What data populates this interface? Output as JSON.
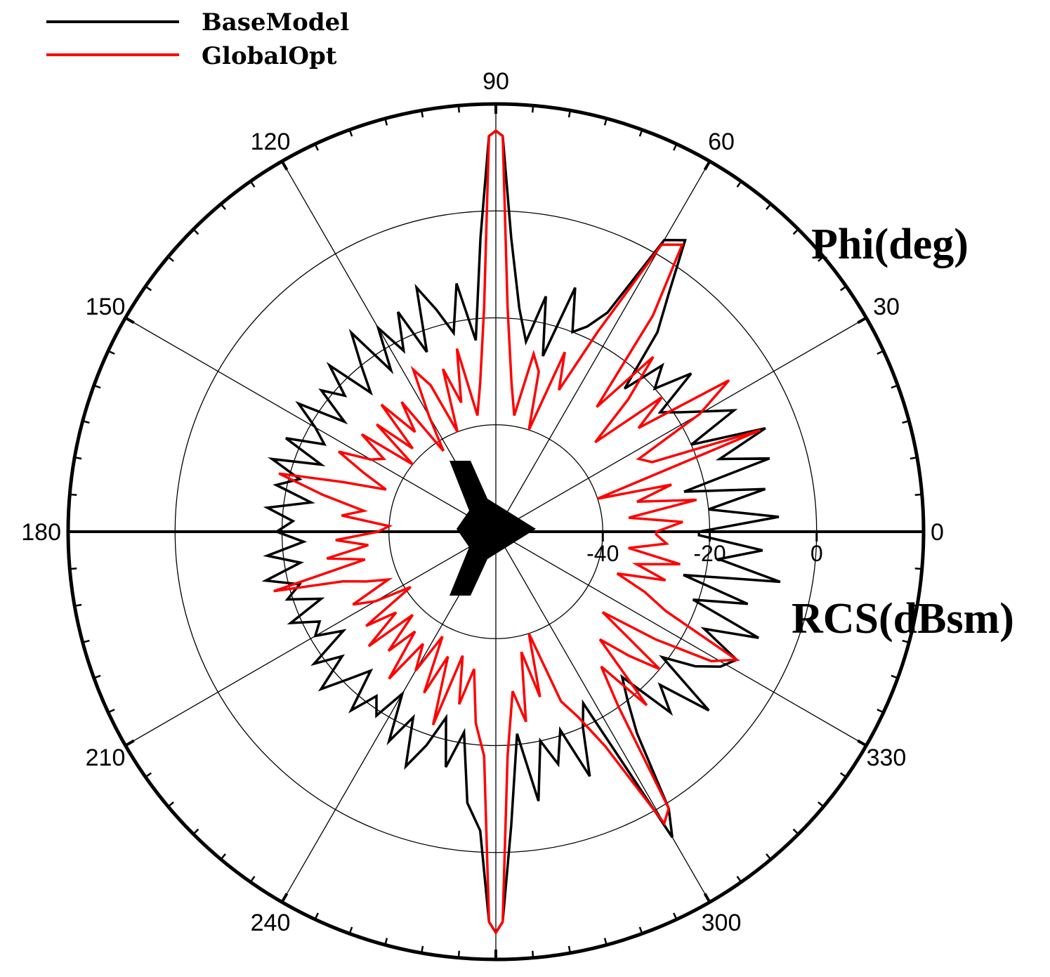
{
  "chart_data": {
    "type": "polar-line",
    "angle_title": "Phi(deg)",
    "radial_title": "RCS(dBsm)",
    "angle_ticks": [
      "0",
      "30",
      "60",
      "90",
      "120",
      "150",
      "180",
      "210",
      "240",
      "300",
      "330"
    ],
    "radial_ticks": [
      "-40",
      "-20",
      "0"
    ],
    "radial_range": [
      -60,
      20
    ],
    "ring_values": [
      -60,
      -40,
      -20,
      0,
      20
    ],
    "legend_position": "top-left",
    "grid": true,
    "series": [
      {
        "name": "BaseModel",
        "color": "#000000",
        "points": [
          [
            0,
            -22
          ],
          [
            3,
            -7
          ],
          [
            6,
            -20
          ],
          [
            9,
            -9
          ],
          [
            12,
            -24
          ],
          [
            15,
            -7
          ],
          [
            18,
            -16
          ],
          [
            21,
            -6
          ],
          [
            24,
            -20
          ],
          [
            27,
            -10
          ],
          [
            30,
            -15
          ],
          [
            33,
            -19
          ],
          [
            36,
            -22
          ],
          [
            39,
            -13
          ],
          [
            42,
            -20
          ],
          [
            45,
            -16
          ],
          [
            48,
            -24
          ],
          [
            51,
            -12
          ],
          [
            54,
            -5
          ],
          [
            57,
            5
          ],
          [
            60,
            3
          ],
          [
            63,
            -14
          ],
          [
            66,
            -18
          ],
          [
            69,
            -20
          ],
          [
            72,
            -12
          ],
          [
            75,
            -26
          ],
          [
            78,
            -15
          ],
          [
            81,
            -24
          ],
          [
            84,
            -18
          ],
          [
            87,
            -5
          ],
          [
            89,
            14
          ],
          [
            90,
            15
          ],
          [
            91,
            14
          ],
          [
            93,
            -5
          ],
          [
            96,
            -24
          ],
          [
            99,
            -13
          ],
          [
            102,
            -22
          ],
          [
            105,
            -17
          ],
          [
            108,
            -12
          ],
          [
            111,
            -24
          ],
          [
            114,
            -15
          ],
          [
            117,
            -22
          ],
          [
            120,
            -16
          ],
          [
            123,
            -24
          ],
          [
            126,
            -14
          ],
          [
            129,
            -20
          ],
          [
            132,
            -25
          ],
          [
            135,
            -16
          ],
          [
            138,
            -22
          ],
          [
            141,
            -18
          ],
          [
            144,
            -25
          ],
          [
            147,
            -16
          ],
          [
            150,
            -21
          ],
          [
            153,
            -24
          ],
          [
            156,
            -17
          ],
          [
            159,
            -25
          ],
          [
            162,
            -16
          ],
          [
            165,
            -22
          ],
          [
            168,
            -18
          ],
          [
            171,
            -25
          ],
          [
            174,
            -17
          ],
          [
            177,
            -22
          ],
          [
            180,
            -19
          ],
          [
            183,
            -24
          ],
          [
            186,
            -17
          ],
          [
            189,
            -23
          ],
          [
            192,
            -16
          ],
          [
            195,
            -22
          ],
          [
            198,
            -19
          ],
          [
            201,
            -25
          ],
          [
            204,
            -18
          ],
          [
            207,
            -23
          ],
          [
            210,
            -21
          ],
          [
            213,
            -26
          ],
          [
            216,
            -18
          ],
          [
            219,
            -23
          ],
          [
            222,
            -16
          ],
          [
            225,
            -21
          ],
          [
            228,
            -25
          ],
          [
            231,
            -17
          ],
          [
            234,
            -22
          ],
          [
            237,
            -19
          ],
          [
            240,
            -25
          ],
          [
            243,
            -16
          ],
          [
            246,
            -22
          ],
          [
            249,
            -13
          ],
          [
            252,
            -18
          ],
          [
            255,
            -24
          ],
          [
            258,
            -15
          ],
          [
            261,
            -22
          ],
          [
            264,
            -9
          ],
          [
            267,
            -4
          ],
          [
            269,
            13
          ],
          [
            270,
            15
          ],
          [
            271,
            13
          ],
          [
            273,
            -5
          ],
          [
            276,
            -22
          ],
          [
            279,
            -9
          ],
          [
            282,
            -20
          ],
          [
            285,
            -15
          ],
          [
            288,
            -21
          ],
          [
            291,
            -11
          ],
          [
            294,
            -20
          ],
          [
            297,
            -24
          ],
          [
            300,
            6
          ],
          [
            302,
            1
          ],
          [
            305,
            -14
          ],
          [
            308,
            -20
          ],
          [
            311,
            -24
          ],
          [
            314,
            -13
          ],
          [
            317,
            -18
          ],
          [
            320,
            -8
          ],
          [
            323,
            -21
          ],
          [
            326,
            -15
          ],
          [
            329,
            -11
          ],
          [
            332,
            -9
          ],
          [
            335,
            -17
          ],
          [
            338,
            -7
          ],
          [
            341,
            -21
          ],
          [
            344,
            -11
          ],
          [
            347,
            -24
          ],
          [
            350,
            -6
          ],
          [
            353,
            -18
          ],
          [
            356,
            -10
          ],
          [
            359,
            -22
          ]
        ]
      },
      {
        "name": "GlobalOpt",
        "color": "#ff0000",
        "points": [
          [
            0,
            -30
          ],
          [
            3,
            -25
          ],
          [
            6,
            -35
          ],
          [
            9,
            -22
          ],
          [
            12,
            -33
          ],
          [
            15,
            -26
          ],
          [
            18,
            -40
          ],
          [
            21,
            -7
          ],
          [
            24,
            -28
          ],
          [
            27,
            -30
          ],
          [
            30,
            -16
          ],
          [
            33,
            -8
          ],
          [
            36,
            -27
          ],
          [
            39,
            -20
          ],
          [
            42,
            -35
          ],
          [
            45,
            -25
          ],
          [
            48,
            -16
          ],
          [
            51,
            -30
          ],
          [
            54,
            -10
          ],
          [
            57,
            4
          ],
          [
            60,
            2
          ],
          [
            63,
            -18
          ],
          [
            66,
            -31
          ],
          [
            69,
            -24
          ],
          [
            72,
            -40
          ],
          [
            75,
            -29
          ],
          [
            78,
            -26
          ],
          [
            81,
            -38
          ],
          [
            84,
            -32
          ],
          [
            87,
            -18
          ],
          [
            89,
            14
          ],
          [
            90,
            15
          ],
          [
            91,
            14
          ],
          [
            93,
            -18
          ],
          [
            96,
            -32
          ],
          [
            99,
            -38
          ],
          [
            102,
            -25
          ],
          [
            105,
            -35
          ],
          [
            108,
            -28
          ],
          [
            111,
            -40
          ],
          [
            114,
            -30
          ],
          [
            117,
            -26
          ],
          [
            120,
            -35
          ],
          [
            123,
            -42
          ],
          [
            126,
            -30
          ],
          [
            129,
            -36
          ],
          [
            132,
            -28
          ],
          [
            135,
            -38
          ],
          [
            138,
            -30
          ],
          [
            141,
            -40
          ],
          [
            144,
            -29
          ],
          [
            147,
            -35
          ],
          [
            150,
            -33
          ],
          [
            153,
            -27
          ],
          [
            156,
            -33
          ],
          [
            159,
            -38
          ],
          [
            162,
            -30
          ],
          [
            165,
            -18
          ],
          [
            168,
            -27
          ],
          [
            171,
            -35
          ],
          [
            174,
            -31
          ],
          [
            177,
            -40
          ],
          [
            180,
            -38
          ],
          [
            183,
            -30
          ],
          [
            186,
            -36
          ],
          [
            189,
            -28
          ],
          [
            192,
            -35
          ],
          [
            195,
            -17
          ],
          [
            198,
            -30
          ],
          [
            201,
            -34
          ],
          [
            204,
            -38
          ],
          [
            207,
            -30
          ],
          [
            210,
            -34
          ],
          [
            213,
            -41
          ],
          [
            216,
            -30
          ],
          [
            219,
            -36
          ],
          [
            222,
            -28
          ],
          [
            225,
            -38
          ],
          [
            228,
            -30
          ],
          [
            231,
            -36
          ],
          [
            234,
            -26
          ],
          [
            237,
            -35
          ],
          [
            240,
            -30
          ],
          [
            243,
            -38
          ],
          [
            246,
            -27
          ],
          [
            249,
            -35
          ],
          [
            252,
            -22
          ],
          [
            255,
            -36
          ],
          [
            258,
            -27
          ],
          [
            261,
            -34
          ],
          [
            264,
            -24
          ],
          [
            267,
            -18
          ],
          [
            269,
            13
          ],
          [
            270,
            15
          ],
          [
            271,
            13
          ],
          [
            273,
            -18
          ],
          [
            276,
            -30
          ],
          [
            279,
            -24
          ],
          [
            282,
            -37
          ],
          [
            285,
            -28
          ],
          [
            288,
            -40
          ],
          [
            291,
            -26
          ],
          [
            294,
            -22
          ],
          [
            297,
            -15
          ],
          [
            300,
            3
          ],
          [
            302,
            1
          ],
          [
            305,
            -20
          ],
          [
            308,
            -28
          ],
          [
            311,
            -17
          ],
          [
            314,
            -32
          ],
          [
            317,
            -26
          ],
          [
            320,
            -20
          ],
          [
            323,
            -35
          ],
          [
            326,
            -24
          ],
          [
            329,
            -13
          ],
          [
            332,
            -9
          ],
          [
            335,
            -25
          ],
          [
            338,
            -30
          ],
          [
            341,
            -36
          ],
          [
            344,
            -27
          ],
          [
            347,
            -33
          ],
          [
            350,
            -25
          ],
          [
            353,
            -35
          ],
          [
            356,
            -28
          ],
          [
            359,
            -30
          ]
        ]
      }
    ]
  }
}
